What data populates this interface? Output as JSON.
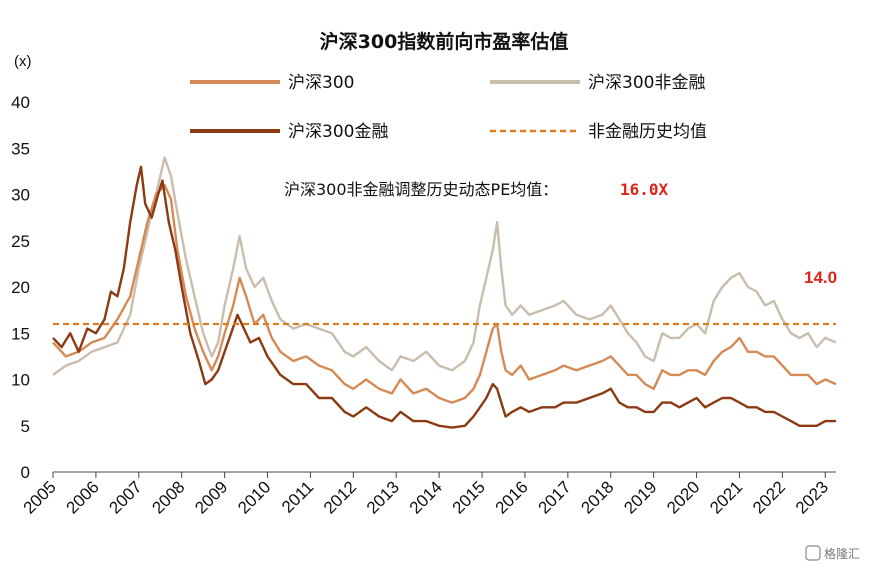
{
  "chart_data": {
    "type": "line",
    "title": "沪深300指数前向市盈率估值",
    "y_unit": "(x)",
    "ylim": [
      0,
      40
    ],
    "y_ticks": [
      "0",
      "5",
      "10",
      "15",
      "20",
      "25",
      "30",
      "35",
      "40"
    ],
    "xlim": [
      2005,
      2023.25
    ],
    "x_ticks": [
      "2005",
      "2006",
      "2007",
      "2008",
      "2009",
      "2010",
      "2011",
      "2012",
      "2013",
      "2014",
      "2015",
      "2016",
      "2017",
      "2018",
      "2019",
      "2020",
      "2021",
      "2022",
      "2023"
    ],
    "grid": false,
    "legend_position": "top",
    "series": [
      {
        "name": "沪深300",
        "color": "#d58a55",
        "style": "solid",
        "points": [
          [
            2005.0,
            14.0
          ],
          [
            2005.3,
            12.5
          ],
          [
            2005.6,
            13.0
          ],
          [
            2005.9,
            14.0
          ],
          [
            2006.2,
            14.5
          ],
          [
            2006.5,
            16.5
          ],
          [
            2006.8,
            19.0
          ],
          [
            2007.0,
            23.0
          ],
          [
            2007.2,
            27.0
          ],
          [
            2007.4,
            30.0
          ],
          [
            2007.6,
            31.0
          ],
          [
            2007.75,
            29.5
          ],
          [
            2007.9,
            24.0
          ],
          [
            2008.1,
            19.0
          ],
          [
            2008.3,
            15.5
          ],
          [
            2008.5,
            13.0
          ],
          [
            2008.7,
            11.0
          ],
          [
            2008.85,
            12.5
          ],
          [
            2009.0,
            15.0
          ],
          [
            2009.2,
            18.0
          ],
          [
            2009.35,
            21.0
          ],
          [
            2009.5,
            19.0
          ],
          [
            2009.7,
            16.0
          ],
          [
            2009.9,
            17.0
          ],
          [
            2010.1,
            14.5
          ],
          [
            2010.3,
            13.0
          ],
          [
            2010.6,
            12.0
          ],
          [
            2010.9,
            12.5
          ],
          [
            2011.2,
            11.5
          ],
          [
            2011.5,
            11.0
          ],
          [
            2011.8,
            9.5
          ],
          [
            2012.0,
            9.0
          ],
          [
            2012.3,
            10.0
          ],
          [
            2012.6,
            9.0
          ],
          [
            2012.9,
            8.5
          ],
          [
            2013.1,
            10.0
          ],
          [
            2013.4,
            8.5
          ],
          [
            2013.7,
            9.0
          ],
          [
            2014.0,
            8.0
          ],
          [
            2014.3,
            7.5
          ],
          [
            2014.6,
            8.0
          ],
          [
            2014.8,
            9.0
          ],
          [
            2014.95,
            10.5
          ],
          [
            2015.1,
            13.0
          ],
          [
            2015.25,
            15.5
          ],
          [
            2015.35,
            16.0
          ],
          [
            2015.45,
            13.0
          ],
          [
            2015.55,
            11.0
          ],
          [
            2015.7,
            10.5
          ],
          [
            2015.9,
            11.5
          ],
          [
            2016.1,
            10.0
          ],
          [
            2016.4,
            10.5
          ],
          [
            2016.7,
            11.0
          ],
          [
            2016.9,
            11.5
          ],
          [
            2017.2,
            11.0
          ],
          [
            2017.5,
            11.5
          ],
          [
            2017.8,
            12.0
          ],
          [
            2018.0,
            12.5
          ],
          [
            2018.2,
            11.5
          ],
          [
            2018.4,
            10.5
          ],
          [
            2018.6,
            10.5
          ],
          [
            2018.8,
            9.5
          ],
          [
            2019.0,
            9.0
          ],
          [
            2019.2,
            11.0
          ],
          [
            2019.4,
            10.5
          ],
          [
            2019.6,
            10.5
          ],
          [
            2019.8,
            11.0
          ],
          [
            2020.0,
            11.0
          ],
          [
            2020.2,
            10.5
          ],
          [
            2020.4,
            12.0
          ],
          [
            2020.6,
            13.0
          ],
          [
            2020.8,
            13.5
          ],
          [
            2021.0,
            14.5
          ],
          [
            2021.2,
            13.0
          ],
          [
            2021.4,
            13.0
          ],
          [
            2021.6,
            12.5
          ],
          [
            2021.8,
            12.5
          ],
          [
            2022.0,
            11.5
          ],
          [
            2022.2,
            10.5
          ],
          [
            2022.4,
            10.5
          ],
          [
            2022.6,
            10.5
          ],
          [
            2022.8,
            9.5
          ],
          [
            2023.0,
            10.0
          ],
          [
            2023.25,
            9.5
          ]
        ]
      },
      {
        "name": "沪深300非金融",
        "color": "#cbbdad",
        "style": "solid",
        "points": [
          [
            2005.0,
            10.5
          ],
          [
            2005.3,
            11.5
          ],
          [
            2005.6,
            12.0
          ],
          [
            2005.9,
            13.0
          ],
          [
            2006.2,
            13.5
          ],
          [
            2006.5,
            14.0
          ],
          [
            2006.8,
            17.0
          ],
          [
            2007.0,
            22.0
          ],
          [
            2007.2,
            26.0
          ],
          [
            2007.4,
            30.0
          ],
          [
            2007.6,
            34.0
          ],
          [
            2007.75,
            32.0
          ],
          [
            2007.9,
            28.0
          ],
          [
            2008.1,
            23.0
          ],
          [
            2008.3,
            19.0
          ],
          [
            2008.5,
            15.0
          ],
          [
            2008.7,
            12.5
          ],
          [
            2008.85,
            14.0
          ],
          [
            2009.0,
            18.0
          ],
          [
            2009.2,
            22.0
          ],
          [
            2009.35,
            25.5
          ],
          [
            2009.5,
            22.0
          ],
          [
            2009.7,
            20.0
          ],
          [
            2009.9,
            21.0
          ],
          [
            2010.1,
            18.5
          ],
          [
            2010.3,
            16.5
          ],
          [
            2010.6,
            15.5
          ],
          [
            2010.9,
            16.0
          ],
          [
            2011.2,
            15.5
          ],
          [
            2011.5,
            15.0
          ],
          [
            2011.8,
            13.0
          ],
          [
            2012.0,
            12.5
          ],
          [
            2012.3,
            13.5
          ],
          [
            2012.6,
            12.0
          ],
          [
            2012.9,
            11.0
          ],
          [
            2013.1,
            12.5
          ],
          [
            2013.4,
            12.0
          ],
          [
            2013.7,
            13.0
          ],
          [
            2014.0,
            11.5
          ],
          [
            2014.3,
            11.0
          ],
          [
            2014.6,
            12.0
          ],
          [
            2014.8,
            14.0
          ],
          [
            2014.95,
            18.0
          ],
          [
            2015.1,
            21.0
          ],
          [
            2015.25,
            24.0
          ],
          [
            2015.35,
            27.0
          ],
          [
            2015.45,
            22.0
          ],
          [
            2015.55,
            18.0
          ],
          [
            2015.7,
            17.0
          ],
          [
            2015.9,
            18.0
          ],
          [
            2016.1,
            17.0
          ],
          [
            2016.4,
            17.5
          ],
          [
            2016.7,
            18.0
          ],
          [
            2016.9,
            18.5
          ],
          [
            2017.2,
            17.0
          ],
          [
            2017.5,
            16.5
          ],
          [
            2017.8,
            17.0
          ],
          [
            2018.0,
            18.0
          ],
          [
            2018.2,
            16.5
          ],
          [
            2018.4,
            15.0
          ],
          [
            2018.6,
            14.0
          ],
          [
            2018.8,
            12.5
          ],
          [
            2019.0,
            12.0
          ],
          [
            2019.2,
            15.0
          ],
          [
            2019.4,
            14.5
          ],
          [
            2019.6,
            14.5
          ],
          [
            2019.8,
            15.5
          ],
          [
            2020.0,
            16.0
          ],
          [
            2020.2,
            15.0
          ],
          [
            2020.4,
            18.5
          ],
          [
            2020.6,
            20.0
          ],
          [
            2020.8,
            21.0
          ],
          [
            2021.0,
            21.5
          ],
          [
            2021.2,
            20.0
          ],
          [
            2021.4,
            19.5
          ],
          [
            2021.6,
            18.0
          ],
          [
            2021.8,
            18.5
          ],
          [
            2022.0,
            16.5
          ],
          [
            2022.2,
            15.0
          ],
          [
            2022.4,
            14.5
          ],
          [
            2022.6,
            15.0
          ],
          [
            2022.8,
            13.5
          ],
          [
            2023.0,
            14.5
          ],
          [
            2023.25,
            14.0
          ]
        ]
      },
      {
        "name": "沪深300金融",
        "color": "#8b3a12",
        "style": "solid",
        "points": [
          [
            2005.0,
            14.5
          ],
          [
            2005.2,
            13.5
          ],
          [
            2005.4,
            15.0
          ],
          [
            2005.6,
            13.0
          ],
          [
            2005.8,
            15.5
          ],
          [
            2006.0,
            15.0
          ],
          [
            2006.2,
            16.5
          ],
          [
            2006.35,
            19.5
          ],
          [
            2006.5,
            19.0
          ],
          [
            2006.65,
            22.0
          ],
          [
            2006.8,
            27.0
          ],
          [
            2006.95,
            31.0
          ],
          [
            2007.05,
            33.0
          ],
          [
            2007.15,
            29.0
          ],
          [
            2007.3,
            27.5
          ],
          [
            2007.45,
            30.0
          ],
          [
            2007.55,
            31.5
          ],
          [
            2007.7,
            27.0
          ],
          [
            2007.85,
            24.0
          ],
          [
            2008.0,
            20.0
          ],
          [
            2008.2,
            15.0
          ],
          [
            2008.4,
            12.0
          ],
          [
            2008.55,
            9.5
          ],
          [
            2008.7,
            10.0
          ],
          [
            2008.85,
            11.0
          ],
          [
            2009.0,
            13.0
          ],
          [
            2009.15,
            15.0
          ],
          [
            2009.3,
            17.0
          ],
          [
            2009.45,
            15.5
          ],
          [
            2009.6,
            14.0
          ],
          [
            2009.8,
            14.5
          ],
          [
            2010.0,
            12.5
          ],
          [
            2010.3,
            10.5
          ],
          [
            2010.6,
            9.5
          ],
          [
            2010.9,
            9.5
          ],
          [
            2011.2,
            8.0
          ],
          [
            2011.5,
            8.0
          ],
          [
            2011.8,
            6.5
          ],
          [
            2012.0,
            6.0
          ],
          [
            2012.3,
            7.0
          ],
          [
            2012.6,
            6.0
          ],
          [
            2012.9,
            5.5
          ],
          [
            2013.1,
            6.5
          ],
          [
            2013.4,
            5.5
          ],
          [
            2013.7,
            5.5
          ],
          [
            2014.0,
            5.0
          ],
          [
            2014.3,
            4.8
          ],
          [
            2014.6,
            5.0
          ],
          [
            2014.8,
            6.0
          ],
          [
            2014.95,
            7.0
          ],
          [
            2015.1,
            8.0
          ],
          [
            2015.25,
            9.5
          ],
          [
            2015.35,
            9.0
          ],
          [
            2015.45,
            7.5
          ],
          [
            2015.55,
            6.0
          ],
          [
            2015.7,
            6.5
          ],
          [
            2015.9,
            7.0
          ],
          [
            2016.1,
            6.5
          ],
          [
            2016.4,
            7.0
          ],
          [
            2016.7,
            7.0
          ],
          [
            2016.9,
            7.5
          ],
          [
            2017.2,
            7.5
          ],
          [
            2017.5,
            8.0
          ],
          [
            2017.8,
            8.5
          ],
          [
            2018.0,
            9.0
          ],
          [
            2018.2,
            7.5
          ],
          [
            2018.4,
            7.0
          ],
          [
            2018.6,
            7.0
          ],
          [
            2018.8,
            6.5
          ],
          [
            2019.0,
            6.5
          ],
          [
            2019.2,
            7.5
          ],
          [
            2019.4,
            7.5
          ],
          [
            2019.6,
            7.0
          ],
          [
            2019.8,
            7.5
          ],
          [
            2020.0,
            8.0
          ],
          [
            2020.2,
            7.0
          ],
          [
            2020.4,
            7.5
          ],
          [
            2020.6,
            8.0
          ],
          [
            2020.8,
            8.0
          ],
          [
            2021.0,
            7.5
          ],
          [
            2021.2,
            7.0
          ],
          [
            2021.4,
            7.0
          ],
          [
            2021.6,
            6.5
          ],
          [
            2021.8,
            6.5
          ],
          [
            2022.0,
            6.0
          ],
          [
            2022.2,
            5.5
          ],
          [
            2022.4,
            5.0
          ],
          [
            2022.6,
            5.0
          ],
          [
            2022.8,
            5.0
          ],
          [
            2023.0,
            5.5
          ],
          [
            2023.25,
            5.5
          ]
        ]
      },
      {
        "name": "非金融历史均值",
        "color": "#e07b1f",
        "style": "dashed",
        "points": [
          [
            2005.0,
            16.0
          ],
          [
            2023.25,
            16.0
          ]
        ]
      }
    ],
    "annotations": {
      "adjusted_label": "沪深300非金融调整历史动态PE均值：",
      "adjusted_value": "16.0X",
      "right_value": "14.0"
    }
  },
  "watermark": "格隆汇"
}
